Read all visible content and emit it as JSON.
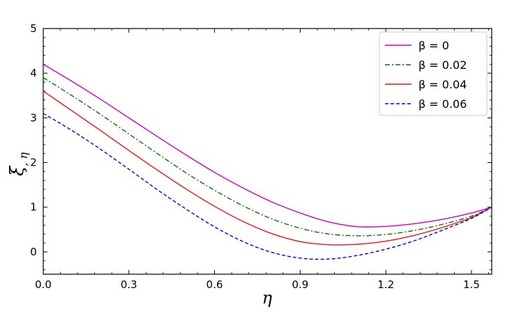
{
  "chart_data": {
    "type": "line",
    "xlabel": "η",
    "ylabel_main": "ξ",
    "ylabel_sub": ", η",
    "xlim": [
      0,
      1.5708
    ],
    "ylim": [
      -0.5,
      5
    ],
    "xticks": [
      0.0,
      0.3,
      0.6,
      0.9,
      1.2,
      1.5
    ],
    "xtick_labels": [
      "0.0",
      "0.3",
      "0.6",
      "0.9",
      "1.2",
      "1.5"
    ],
    "yticks": [
      0,
      1,
      2,
      3,
      4,
      5
    ],
    "ytick_labels": [
      "0",
      "1",
      "2",
      "3",
      "4",
      "5"
    ],
    "grid": false,
    "legend_position": "top-right",
    "x": [
      0.0,
      0.1,
      0.2,
      0.3,
      0.4,
      0.5,
      0.6,
      0.7,
      0.8,
      0.9,
      1.0,
      1.1,
      1.2,
      1.3,
      1.4,
      1.5,
      1.5708
    ],
    "series": [
      {
        "name": "β = 0",
        "color": "#cc00cc",
        "dash": "solid",
        "values": [
          4.2,
          3.82,
          3.42,
          3.0,
          2.58,
          2.17,
          1.78,
          1.43,
          1.12,
          0.87,
          0.67,
          0.565,
          0.57,
          0.63,
          0.73,
          0.87,
          1.0
        ]
      },
      {
        "name": "β = 0.02",
        "color": "#007700",
        "dash": "dashdot",
        "values": [
          3.9,
          3.5,
          3.08,
          2.64,
          2.2,
          1.77,
          1.38,
          1.03,
          0.74,
          0.53,
          0.4,
          0.36,
          0.39,
          0.48,
          0.62,
          0.8,
          1.0
        ]
      },
      {
        "name": "β = 0.04",
        "color": "#ee1111",
        "dash": "solid",
        "values": [
          3.6,
          3.16,
          2.72,
          2.27,
          1.83,
          1.41,
          1.02,
          0.68,
          0.41,
          0.23,
          0.16,
          0.17,
          0.24,
          0.37,
          0.55,
          0.77,
          1.0
        ]
      },
      {
        "name": "β  = 0.06",
        "color": "#0000ee",
        "dash": "dashed",
        "values": [
          3.1,
          2.72,
          2.3,
          1.85,
          1.39,
          0.96,
          0.56,
          0.23,
          -0.01,
          -0.14,
          -0.16,
          -0.08,
          0.06,
          0.25,
          0.49,
          0.75,
          1.0
        ]
      }
    ]
  }
}
